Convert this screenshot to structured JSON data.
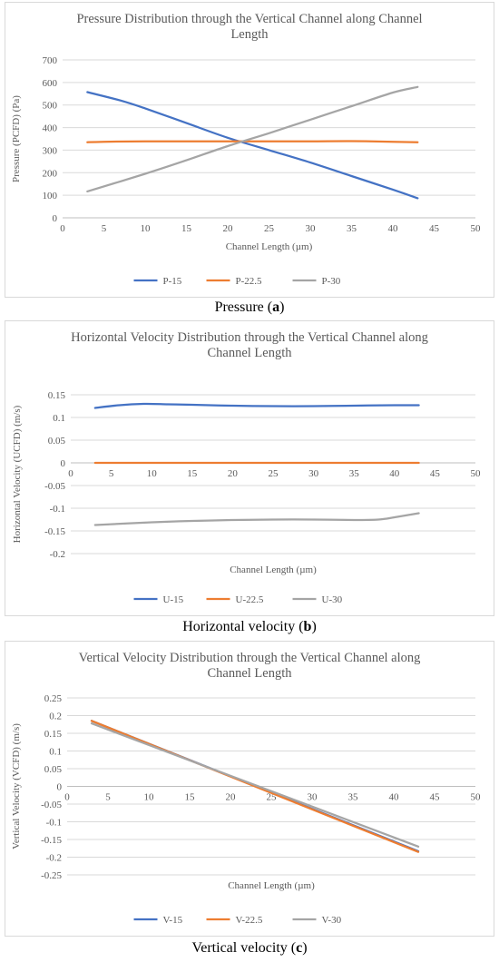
{
  "chart_data": [
    {
      "type": "line",
      "title_lines": [
        "Pressure Distribution through the Vertical Channel along Channel",
        "Length"
      ],
      "xlabel": "Channel Length (µm)",
      "ylabel": "Pressure (PCFD) (Pa)",
      "xlim": [
        0,
        50
      ],
      "xticks": [
        0,
        5,
        10,
        15,
        20,
        25,
        30,
        35,
        40,
        45,
        50
      ],
      "ylim": [
        0,
        700
      ],
      "yticks": [
        0,
        100,
        200,
        300,
        400,
        500,
        600,
        700
      ],
      "grid": true,
      "legend": "bottom",
      "series": [
        {
          "name": "P-15",
          "color": "#4472c4",
          "x": [
            3,
            7,
            10,
            15,
            20,
            25,
            30,
            35,
            40,
            43
          ],
          "y": [
            557,
            520,
            485,
            420,
            355,
            300,
            245,
            185,
            125,
            87
          ]
        },
        {
          "name": "P-22.5",
          "color": "#ed7d31",
          "x": [
            3,
            5,
            10,
            15,
            20,
            25,
            30,
            35,
            40,
            43
          ],
          "y": [
            335,
            337,
            339,
            339,
            339,
            339,
            339,
            340,
            337,
            335
          ]
        },
        {
          "name": "P-30",
          "color": "#a5a5a5",
          "x": [
            3,
            10,
            15,
            20,
            25,
            30,
            35,
            40,
            43
          ],
          "y": [
            117,
            195,
            255,
            318,
            375,
            435,
            495,
            555,
            580
          ]
        }
      ],
      "caption": {
        "label": "Pressure",
        "letter": "a"
      }
    },
    {
      "type": "line",
      "title_lines": [
        "Horizontal Velocity Distribution through the Vertical Channel along",
        "Channel Length"
      ],
      "xlabel": "Channel Length (µm)",
      "ylabel": "Horizontal Velocity (UCFD) (m/s)",
      "xlim": [
        0,
        50
      ],
      "xticks": [
        0,
        5,
        10,
        15,
        20,
        25,
        30,
        35,
        40,
        45,
        50
      ],
      "ylim": [
        -0.2,
        0.15
      ],
      "yticks": [
        -0.2,
        -0.15,
        -0.1,
        -0.05,
        0,
        0.05,
        0.1,
        0.15
      ],
      "ytick_labels": [
        "-0.2",
        "-0.15",
        "-0.1",
        "-0.05",
        "0",
        "0.05",
        "0.1",
        "0.15"
      ],
      "grid": true,
      "legend": "bottom",
      "series": [
        {
          "name": "U-15",
          "color": "#4472c4",
          "x": [
            3,
            6,
            9,
            12,
            15,
            20,
            25,
            30,
            35,
            40,
            43
          ],
          "y": [
            0.121,
            0.127,
            0.13,
            0.129,
            0.128,
            0.126,
            0.125,
            0.125,
            0.126,
            0.127,
            0.127
          ]
        },
        {
          "name": "U-22.5",
          "color": "#ed7d31",
          "x": [
            3,
            10,
            20,
            30,
            40,
            43
          ],
          "y": [
            0,
            0,
            0,
            0,
            0,
            0
          ]
        },
        {
          "name": "U-30",
          "color": "#a5a5a5",
          "x": [
            3,
            10,
            15,
            20,
            25,
            30,
            35,
            38,
            40,
            43
          ],
          "y": [
            -0.137,
            -0.131,
            -0.128,
            -0.126,
            -0.125,
            -0.125,
            -0.126,
            -0.125,
            -0.12,
            -0.111
          ]
        }
      ],
      "caption": {
        "label": "Horizontal velocity",
        "letter": "b"
      }
    },
    {
      "type": "line",
      "title_lines": [
        "Vertical Velocity Distribution through the Vertical Channel along",
        "Channel Length"
      ],
      "xlabel": "Channel Length (µm)",
      "ylabel": "Vertical Velocity (VCFD) (m/s)",
      "xlim": [
        0,
        50
      ],
      "xticks": [
        0,
        5,
        10,
        15,
        20,
        25,
        30,
        35,
        40,
        45,
        50
      ],
      "ylim": [
        -0.25,
        0.25
      ],
      "yticks": [
        -0.25,
        -0.2,
        -0.15,
        -0.1,
        -0.05,
        0,
        0.05,
        0.1,
        0.15,
        0.2,
        0.25
      ],
      "ytick_labels": [
        "-0.25",
        "-0.2",
        "-0.15",
        "-0.1",
        "-0.05",
        "0",
        "0.05",
        "0.1",
        "0.15",
        "0.2",
        "0.25"
      ],
      "grid": true,
      "legend": "bottom",
      "series": [
        {
          "name": "V-15",
          "color": "#4472c4",
          "x": [
            3,
            43
          ],
          "y": [
            0.185,
            -0.183
          ]
        },
        {
          "name": "V-22.5",
          "color": "#ed7d31",
          "x": [
            3,
            43
          ],
          "y": [
            0.185,
            -0.185
          ]
        },
        {
          "name": "V-30",
          "color": "#a5a5a5",
          "x": [
            3,
            43
          ],
          "y": [
            0.178,
            -0.17
          ]
        }
      ],
      "caption": {
        "label": "Vertical velocity",
        "letter": "c"
      }
    }
  ]
}
